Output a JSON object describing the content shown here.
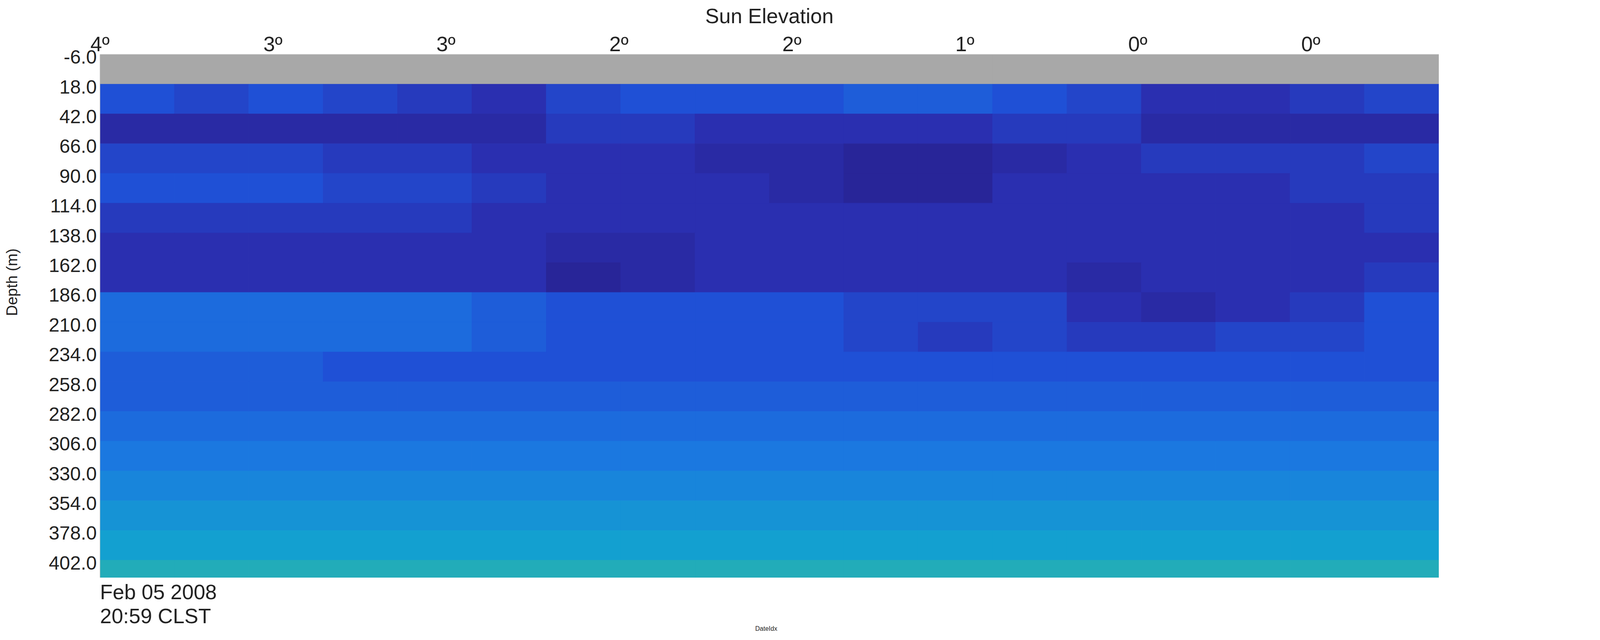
{
  "chart_data": {
    "type": "heatmap",
    "title": "Sun Elevation",
    "y_label": "Depth (m)",
    "x_label": "DateIdx",
    "annotations": [
      "Feb 05 2008",
      "20:59 CLST"
    ],
    "xlim": [
      0,
      77.4
    ],
    "ylim": [
      -8,
      414
    ],
    "xticks": [
      {
        "value": 0,
        "label": "4º"
      },
      {
        "value": 10,
        "label": "3º"
      },
      {
        "value": 20,
        "label": "3º"
      },
      {
        "value": 30,
        "label": "2º"
      },
      {
        "value": 40,
        "label": "2º"
      },
      {
        "value": 50,
        "label": "1º"
      },
      {
        "value": 60,
        "label": "0º"
      },
      {
        "value": 70,
        "label": "0º"
      }
    ],
    "yticks": [
      {
        "value": -6,
        "label": "-6.0"
      },
      {
        "value": 18,
        "label": "18.0"
      },
      {
        "value": 42,
        "label": "42.0"
      },
      {
        "value": 66,
        "label": "66.0"
      },
      {
        "value": 90,
        "label": "90.0"
      },
      {
        "value": 114,
        "label": "114.0"
      },
      {
        "value": 138,
        "label": "138.0"
      },
      {
        "value": 162,
        "label": "162.0"
      },
      {
        "value": 186,
        "label": "186.0"
      },
      {
        "value": 210,
        "label": "210.0"
      },
      {
        "value": 234,
        "label": "234.0"
      },
      {
        "value": 258,
        "label": "258.0"
      },
      {
        "value": 282,
        "label": "282.0"
      },
      {
        "value": 306,
        "label": "306.0"
      },
      {
        "value": 330,
        "label": "330.0"
      },
      {
        "value": 354,
        "label": "354.0"
      },
      {
        "value": 378,
        "label": "378.0"
      },
      {
        "value": 402,
        "label": "402.0"
      }
    ],
    "zlim": [
      0,
      10
    ],
    "x_edges": [
      0,
      4.3,
      8.6,
      12.9,
      17.2,
      21.5,
      25.8,
      30.1,
      34.4,
      38.7,
      43,
      47.3,
      51.6,
      55.9,
      60.2,
      64.5,
      68.8,
      73.1,
      77.4
    ],
    "y_edges": [
      -8,
      16,
      40,
      64,
      88,
      112,
      136,
      160,
      184,
      208,
      232,
      256,
      280,
      304,
      328,
      352,
      376,
      400,
      414
    ],
    "cells": [
      [
        null,
        null,
        null,
        null,
        null,
        null,
        null,
        null,
        null,
        null,
        null,
        null,
        null,
        null,
        null,
        null,
        null,
        null
      ],
      [
        3.5,
        3,
        3.5,
        3,
        2.5,
        2,
        3,
        3.5,
        3.5,
        3.5,
        4,
        4,
        3.5,
        3,
        2,
        2,
        2.5,
        3
      ],
      [
        1.5,
        1.5,
        1.5,
        1.5,
        1.5,
        1.5,
        2.5,
        2.5,
        2,
        2,
        2,
        2,
        2.5,
        2.5,
        1.5,
        1.5,
        1.5,
        1.5
      ],
      [
        3,
        3,
        3,
        2.5,
        2.5,
        2,
        2,
        2,
        1.5,
        1.5,
        1,
        1,
        1.5,
        2,
        2.5,
        2.5,
        2.5,
        3
      ],
      [
        3.5,
        3.5,
        3.5,
        3,
        3,
        2.5,
        2,
        2,
        2,
        1.5,
        1,
        1,
        2,
        2,
        2,
        2,
        2.5,
        2.5
      ],
      [
        2.5,
        2.5,
        2.5,
        2.5,
        2.5,
        2,
        2,
        2,
        2,
        2,
        2,
        2,
        2,
        2,
        2,
        2,
        2,
        2.5
      ],
      [
        2,
        2,
        2,
        2,
        2,
        2,
        1.5,
        1.5,
        2,
        2,
        2,
        2,
        2,
        2,
        2,
        2,
        2,
        2
      ],
      [
        2,
        2,
        2,
        2,
        2,
        2,
        1,
        1.5,
        2,
        2,
        2,
        2,
        2,
        1.5,
        2,
        2,
        2,
        2.5
      ],
      [
        4.5,
        4.5,
        4.5,
        4.5,
        4.5,
        4,
        3.5,
        3.5,
        3.5,
        3.5,
        3,
        3,
        3,
        2,
        1.5,
        2,
        2.5,
        3.5
      ],
      [
        4.5,
        4.5,
        4.5,
        4.5,
        4.5,
        4,
        3.5,
        3.5,
        3.5,
        3.5,
        3,
        2.5,
        3,
        2.5,
        2.5,
        3,
        3,
        3.5
      ],
      [
        4,
        4,
        4,
        3.5,
        3.5,
        3.5,
        3.5,
        3.5,
        3.5,
        3.5,
        3.5,
        3.5,
        3.5,
        3.5,
        3.5,
        3.5,
        3.5,
        3.5
      ],
      [
        4,
        4,
        4,
        4,
        4,
        4,
        4,
        4,
        4,
        4,
        4,
        4,
        4,
        4,
        4,
        4,
        4,
        4
      ],
      [
        4.5,
        4.5,
        4.5,
        4.5,
        4.5,
        4.5,
        4.5,
        4.5,
        4.5,
        4.5,
        4.5,
        4.5,
        4.5,
        4.5,
        4.5,
        4.5,
        4.5,
        4.5
      ],
      [
        5,
        5,
        5,
        5,
        5,
        5,
        5,
        5,
        5,
        5,
        5,
        5,
        5,
        5,
        5,
        5,
        5,
        5
      ],
      [
        5.5,
        5.5,
        5.5,
        5.5,
        5.5,
        5.5,
        5.5,
        5.5,
        5.5,
        5.5,
        5.5,
        5.5,
        5.5,
        5.5,
        5.5,
        5.5,
        5.5,
        5.5
      ],
      [
        6,
        6,
        6,
        6,
        6,
        6,
        6,
        6,
        6,
        6,
        6,
        6,
        6,
        6,
        6,
        6,
        6,
        6
      ],
      [
        6.5,
        6.5,
        6.5,
        6.5,
        6.5,
        6.5,
        6.5,
        6.5,
        6.5,
        6.5,
        6.5,
        6.5,
        6.5,
        6.5,
        6.5,
        6.5,
        6.5,
        6.5
      ],
      [
        7,
        7,
        7,
        7,
        7,
        7,
        7,
        7,
        7,
        7,
        7,
        7,
        7,
        7,
        7,
        7,
        7,
        7
      ]
    ]
  }
}
